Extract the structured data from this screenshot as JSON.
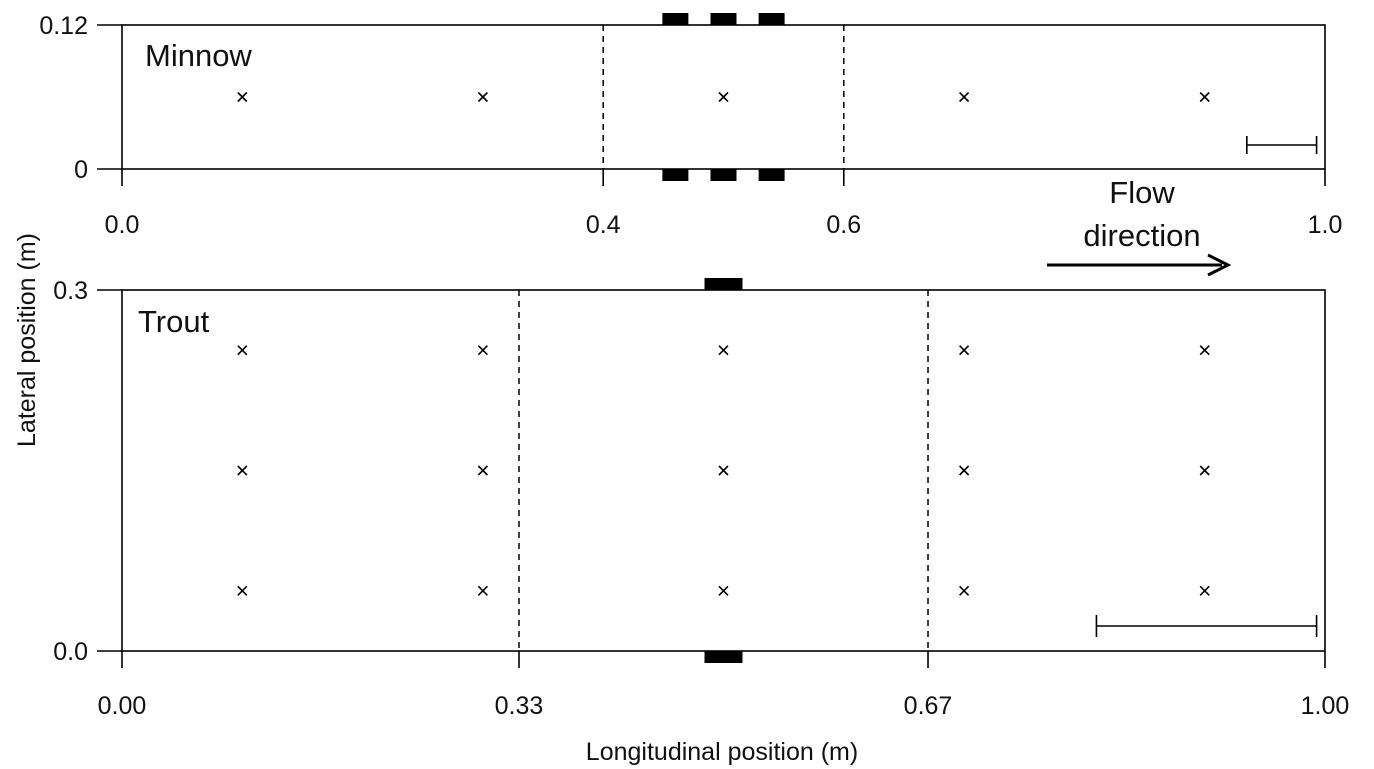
{
  "chart_data": [
    {
      "type": "scatter",
      "panel_label": "Minnow",
      "xlim": [
        0,
        1
      ],
      "ylim": [
        0,
        0.12
      ],
      "x_ticks": [
        {
          "value": 0.0,
          "label": "0.0"
        },
        {
          "value": 0.4,
          "label": "0.4"
        },
        {
          "value": 0.6,
          "label": "0.6"
        },
        {
          "value": 1.0,
          "label": "1.0"
        }
      ],
      "y_ticks": [
        {
          "value": 0,
          "label": "0"
        },
        {
          "value": 0.12,
          "label": "0.12"
        }
      ],
      "dashed_lines_x": [
        0.4,
        0.6
      ],
      "points": [
        {
          "x": 0.1,
          "y": 0.06
        },
        {
          "x": 0.3,
          "y": 0.06
        },
        {
          "x": 0.5,
          "y": 0.06
        },
        {
          "x": 0.7,
          "y": 0.06
        },
        {
          "x": 0.9,
          "y": 0.06
        }
      ],
      "markers_x": [
        0.46,
        0.5,
        0.54
      ],
      "scale_bar_x": [
        0.935,
        0.993
      ],
      "scale_bar_y": 0.02,
      "grid": false
    },
    {
      "type": "scatter",
      "panel_label": "Trout",
      "xlim": [
        0,
        1
      ],
      "ylim": [
        0,
        0.3
      ],
      "x_ticks": [
        {
          "value": 0.0,
          "label": "0.00"
        },
        {
          "value": 0.33,
          "label": "0.33"
        },
        {
          "value": 0.67,
          "label": "0.67"
        },
        {
          "value": 1.0,
          "label": "1.00"
        }
      ],
      "y_ticks": [
        {
          "value": 0.0,
          "label": "0.0"
        },
        {
          "value": 0.3,
          "label": "0.3"
        }
      ],
      "dashed_lines_x": [
        0.33,
        0.67
      ],
      "points": [
        {
          "x": 0.1,
          "y": 0.25
        },
        {
          "x": 0.3,
          "y": 0.25
        },
        {
          "x": 0.5,
          "y": 0.25
        },
        {
          "x": 0.7,
          "y": 0.25
        },
        {
          "x": 0.9,
          "y": 0.25
        },
        {
          "x": 0.1,
          "y": 0.15
        },
        {
          "x": 0.3,
          "y": 0.15
        },
        {
          "x": 0.5,
          "y": 0.15
        },
        {
          "x": 0.7,
          "y": 0.15
        },
        {
          "x": 0.9,
          "y": 0.15
        },
        {
          "x": 0.1,
          "y": 0.05
        },
        {
          "x": 0.3,
          "y": 0.05
        },
        {
          "x": 0.5,
          "y": 0.05
        },
        {
          "x": 0.7,
          "y": 0.05
        },
        {
          "x": 0.9,
          "y": 0.05
        }
      ],
      "markers_x": [
        0.5
      ],
      "scale_bar_x": [
        0.81,
        0.993
      ],
      "scale_bar_y": 0.02,
      "grid": false
    }
  ],
  "xlabel": "Longitudinal position (m)",
  "ylabel": "Lateral position (m)",
  "annotation": {
    "line1": "Flow",
    "line2": "direction",
    "arrow": "right-arrow"
  },
  "colors": {
    "ink": "#000000",
    "background": "#ffffff"
  }
}
